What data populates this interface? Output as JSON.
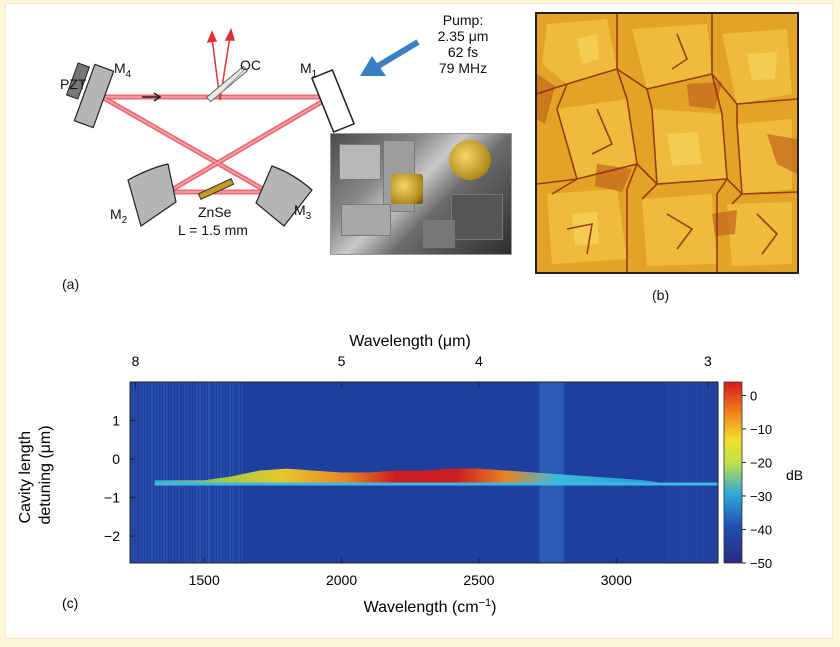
{
  "panel_a": {
    "panel_label": "(a)",
    "pump_label": "Pump:",
    "pump_wavelength": "2.35 μm",
    "pump_duration": "62 fs",
    "pump_rep_rate": "79 MHz",
    "crystal_label": "ZnSe",
    "crystal_length": "L = 1.5 mm",
    "pzt_label": "PZT",
    "oc_label": "OC",
    "mirrors": [
      {
        "letter": "M",
        "sub": "4"
      },
      {
        "letter": "M",
        "sub": "1"
      },
      {
        "letter": "M",
        "sub": "2"
      },
      {
        "letter": "M",
        "sub": "3"
      }
    ],
    "colors": {
      "beam": "#e8505b",
      "pump_arrow": "#3a7fc4",
      "mirror": "#b5b5b5"
    }
  },
  "panel_b": {
    "panel_label": "(b)",
    "colors": {
      "base": "#e3a326",
      "grain_light": "#f5c94a",
      "boundary": "#8a2a10"
    }
  },
  "panel_c": {
    "panel_label": "(c)",
    "top_axis_label": "Wavelength (μm)",
    "top_ticks": [
      "8",
      "5",
      "4",
      "3"
    ],
    "bottom_axis_label": "Wavelength (cm",
    "bottom_axis_sup": "−1",
    "bottom_axis_close": ")",
    "bottom_ticks": [
      "1500",
      "2000",
      "2500",
      "3000"
    ],
    "y_label_line1": "Cavity length",
    "y_label_line2": "detuning (μm)",
    "y_ticks": [
      "1",
      "0",
      "−1",
      "−2"
    ],
    "colorbar_label": "dB",
    "colorbar_ticks": [
      "0",
      "−10",
      "−20",
      "−30",
      "−40",
      "−50"
    ]
  },
  "chart_data": {
    "type": "heatmap",
    "xlabel": "Wavelength (cm−1)",
    "x2label": "Wavelength (μm)",
    "ylabel": "Cavity length detuning (μm)",
    "xlim": [
      1230,
      3370
    ],
    "ylim": [
      -2.7,
      2.0
    ],
    "x_ticks": [
      1500,
      2000,
      2500,
      3000
    ],
    "top_x_ticks_um": [
      8,
      5,
      4,
      3
    ],
    "y_ticks": [
      1,
      0,
      -1,
      -2
    ],
    "colorbar": {
      "label": "dB",
      "range": [
        -50,
        4
      ],
      "ticks": [
        0,
        -10,
        -20,
        -30,
        -40,
        -50
      ]
    },
    "background_level_db": -45,
    "resonance_line": {
      "y": -0.65,
      "level_db": -30,
      "x_range": [
        1320,
        3370
      ]
    },
    "spectrum_profile": {
      "x": [
        1320,
        1500,
        1600,
        1700,
        1800,
        1900,
        2000,
        2100,
        2200,
        2300,
        2400,
        2500,
        2600,
        2700,
        2800,
        2900,
        3000,
        3100,
        3150
      ],
      "peak_level_db": [
        -30,
        -32,
        -26,
        -20,
        -18,
        -17,
        -14,
        -8,
        -4,
        -2,
        -2,
        -5,
        -10,
        -22,
        -24,
        -25,
        -27,
        -30,
        -32
      ],
      "upper_edge_y": [
        -0.55,
        -0.55,
        -0.45,
        -0.3,
        -0.25,
        -0.3,
        -0.35,
        -0.35,
        -0.3,
        -0.3,
        -0.25,
        -0.25,
        -0.3,
        -0.35,
        -0.4,
        -0.45,
        -0.5,
        -0.55,
        -0.6
      ]
    },
    "water_absorption_band_cm": [
      2720,
      2810
    ]
  }
}
